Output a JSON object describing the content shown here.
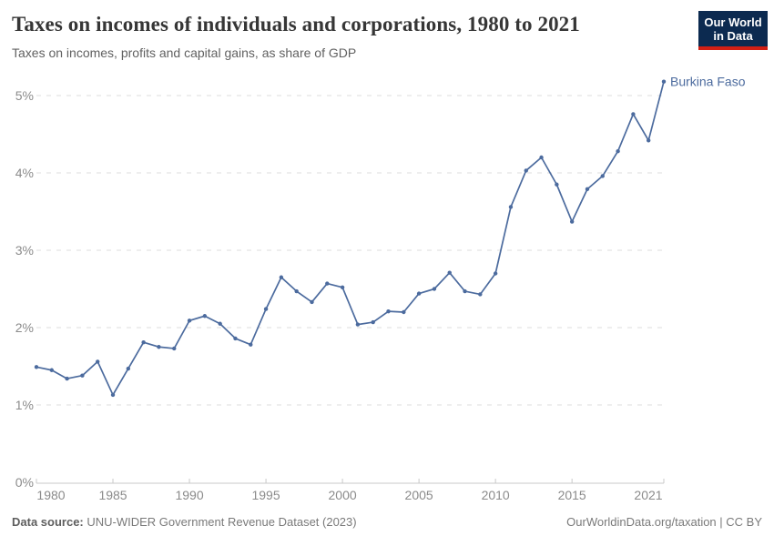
{
  "logo": {
    "line1": "Our World",
    "line2": "in Data",
    "bg_color": "#0c2a50",
    "accent_color": "#d21f14"
  },
  "footer": {
    "source_label": "Data source:",
    "source_text": "UNU-WIDER Government Revenue Dataset (2023)",
    "link_text": "OurWorldinData.org/taxation | CC BY"
  },
  "chart_data": {
    "type": "line",
    "title": "Taxes on incomes of individuals and corporations, 1980 to 2021",
    "subtitle": "Taxes on incomes, profits and capital gains, as share of GDP",
    "xlabel": "",
    "ylabel": "",
    "ylim": [
      0,
      5.2
    ],
    "xlim": [
      1980,
      2021
    ],
    "grid": "horizontal-dashed",
    "legend_position": "end-of-line-label",
    "x_ticks": [
      1980,
      1985,
      1990,
      1995,
      2000,
      2005,
      2010,
      2015,
      2021
    ],
    "y_ticks": {
      "values": [
        0,
        1,
        2,
        3,
        4,
        5
      ],
      "labels": [
        "0%",
        "1%",
        "2%",
        "3%",
        "4%",
        "5%"
      ]
    },
    "series": [
      {
        "name": "Burkina Faso",
        "color": "#4c6b9e",
        "x": [
          1980,
          1981,
          1982,
          1983,
          1984,
          1985,
          1986,
          1987,
          1988,
          1989,
          1990,
          1991,
          1992,
          1993,
          1994,
          1995,
          1996,
          1997,
          1998,
          1999,
          2000,
          2001,
          2002,
          2003,
          2004,
          2005,
          2006,
          2007,
          2008,
          2009,
          2010,
          2011,
          2012,
          2013,
          2014,
          2015,
          2016,
          2017,
          2018,
          2019,
          2020,
          2021
        ],
        "values": [
          1.49,
          1.45,
          1.34,
          1.38,
          1.56,
          1.13,
          1.47,
          1.81,
          1.75,
          1.73,
          2.09,
          2.15,
          2.05,
          1.86,
          1.78,
          2.24,
          2.65,
          2.47,
          2.33,
          2.57,
          2.52,
          2.04,
          2.07,
          2.21,
          2.2,
          2.44,
          2.5,
          2.71,
          2.47,
          2.43,
          2.7,
          3.56,
          4.03,
          4.2,
          3.85,
          3.37,
          3.79,
          3.96,
          4.28,
          4.76,
          4.42,
          5.18
        ]
      }
    ]
  }
}
